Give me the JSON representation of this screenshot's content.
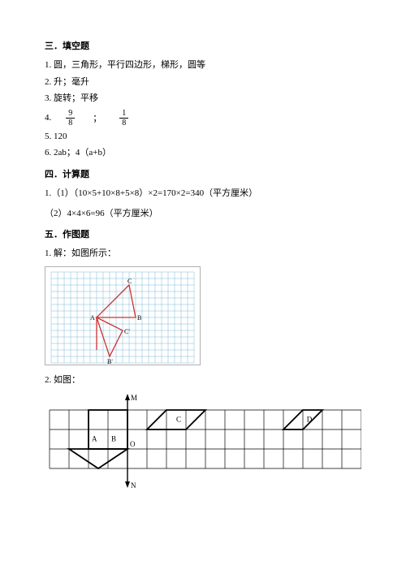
{
  "section3": {
    "heading": "三．填空题",
    "items": {
      "p1": "1. 圆，三角形，平行四边形，梯形，圆等",
      "p2": "2. 升；毫升",
      "p3": "3. 旋转；平移",
      "p4_label": "4.",
      "p4_frac1_num": "9",
      "p4_frac1_den": "8",
      "p4_sep": "；",
      "p4_frac2_num": "1",
      "p4_frac2_den": "8",
      "p5": "5. 120",
      "p6": "6. 2ab；4（a+b）"
    }
  },
  "section4": {
    "heading": "四．计算题",
    "p1": "1.（1）（10×5+10×8+5×8）×2=170×2=340（平方厘米）",
    "p2": "（2）4×4×6=96（平方厘米）"
  },
  "section5": {
    "heading": "五．作图题",
    "p1": "1. 解：如图所示：",
    "p2": "2. 如图：",
    "fig1": {
      "grid_color": "#7fb8d8",
      "shape_color": "#d03030",
      "bg": "#ffffff",
      "labels": {
        "A": "A",
        "B": "B",
        "C": "C",
        "Bp": "B'",
        "Cp": "C'"
      }
    },
    "fig2": {
      "grid_color": "#000000",
      "shape_color": "#000000",
      "labels": {
        "M": "M",
        "N": "N",
        "O": "O",
        "A": "A",
        "B": "B",
        "C": "C",
        "D": "D"
      }
    }
  }
}
